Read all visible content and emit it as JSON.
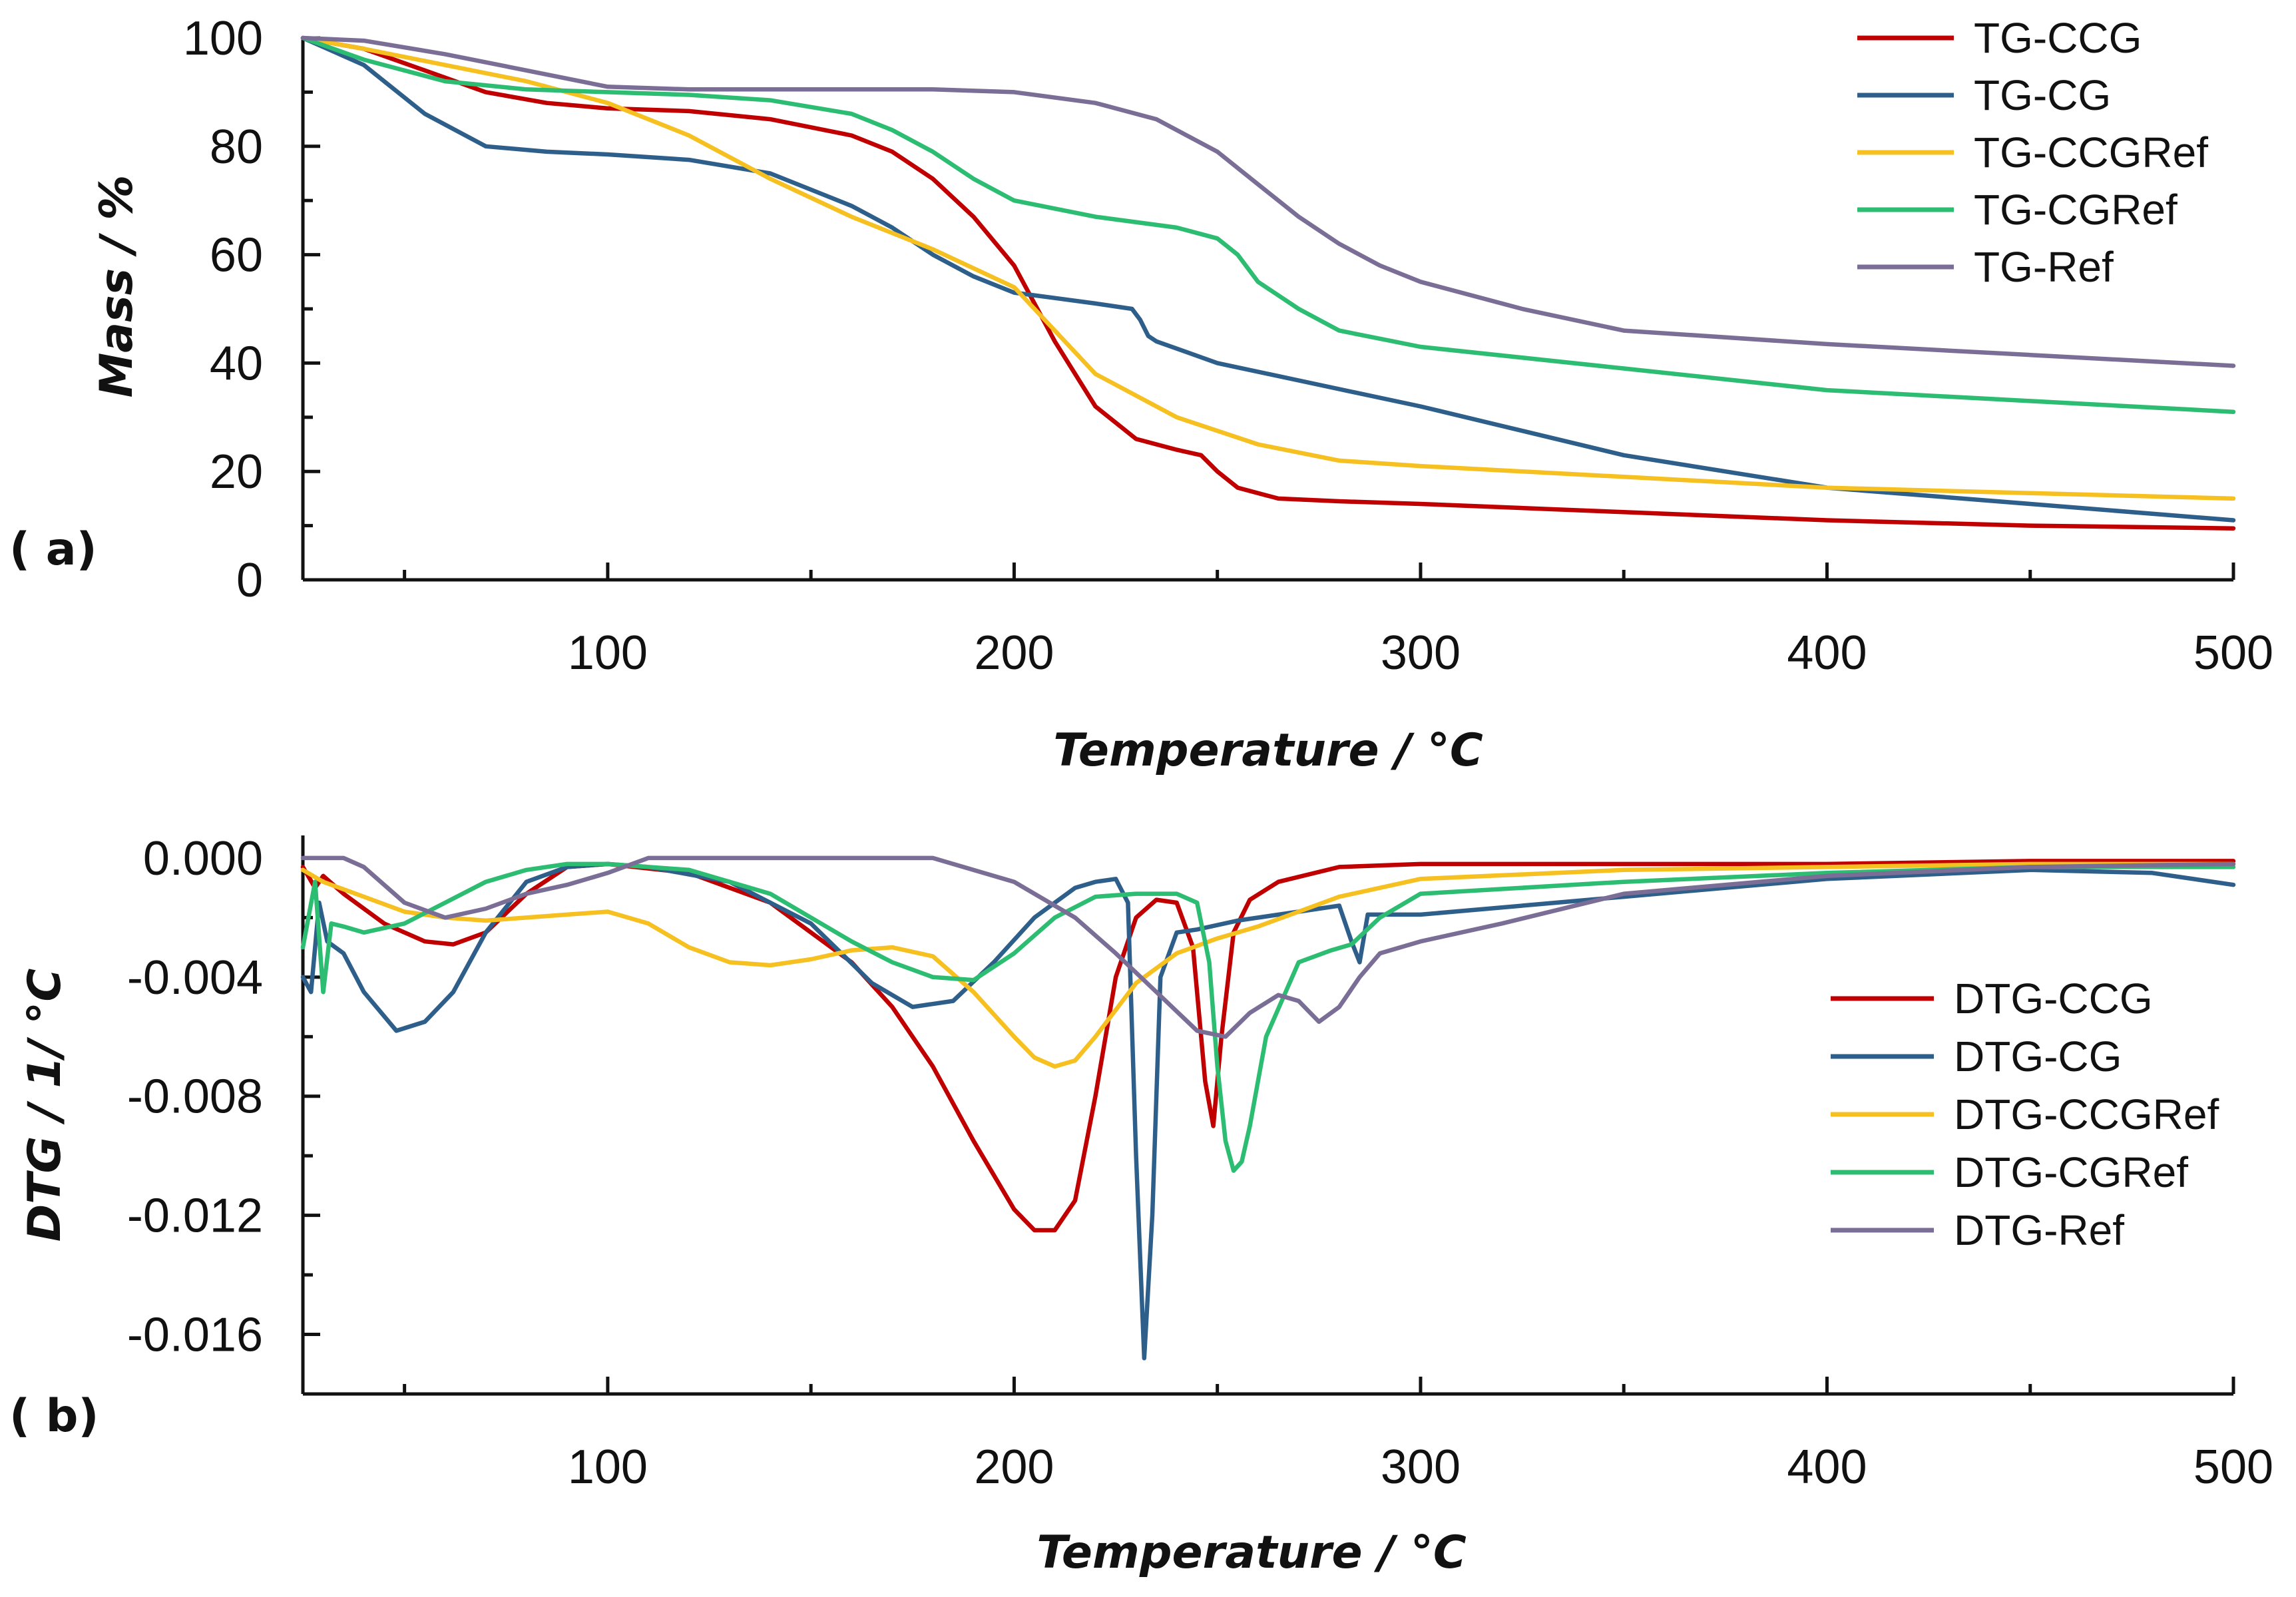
{
  "chart_data": [
    {
      "type": "line",
      "panel_label": "( a)",
      "xlabel": "Temperature / °C",
      "ylabel": "Mass / %",
      "xlim": [
        25,
        500
      ],
      "ylim": [
        0,
        100
      ],
      "x_ticks": [
        100,
        200,
        300,
        400,
        500
      ],
      "x_tick_labels": [
        "100",
        "200",
        "300",
        "400",
        "500"
      ],
      "y_ticks": [
        0,
        20,
        40,
        60,
        80,
        100
      ],
      "y_tick_labels": [
        "0",
        "20",
        "40",
        "60",
        "80",
        "100"
      ],
      "legend_position": "top-right",
      "series": [
        {
          "name": "TG-CCG",
          "color": "#c00000",
          "x": [
            25,
            40,
            55,
            70,
            85,
            100,
            120,
            140,
            160,
            170,
            180,
            190,
            200,
            210,
            220,
            230,
            240,
            246,
            250,
            255,
            265,
            280,
            300,
            350,
            400,
            450,
            500
          ],
          "y": [
            100,
            98,
            94,
            90,
            88,
            87,
            86.5,
            85,
            82,
            79,
            74,
            67,
            58,
            44,
            32,
            26,
            24,
            23,
            20,
            17,
            15,
            14.5,
            14,
            12.5,
            11,
            10,
            9.5
          ]
        },
        {
          "name": "TG-CG",
          "color": "#2e5f8a",
          "x": [
            25,
            40,
            55,
            70,
            85,
            100,
            120,
            140,
            150,
            160,
            170,
            180,
            190,
            200,
            210,
            220,
            229,
            231,
            233,
            235,
            250,
            275,
            300,
            350,
            400,
            450,
            500
          ],
          "y": [
            100,
            95,
            86,
            80,
            79,
            78.5,
            77.5,
            75,
            72,
            69,
            65,
            60,
            56,
            53,
            52,
            51,
            50,
            48,
            45,
            44,
            40,
            36,
            32,
            23,
            17,
            14,
            11
          ]
        },
        {
          "name": "TG-CCGRef",
          "color": "#f5c020",
          "x": [
            25,
            40,
            60,
            80,
            100,
            120,
            140,
            160,
            180,
            200,
            210,
            220,
            230,
            240,
            260,
            280,
            300,
            350,
            400,
            450,
            500
          ],
          "y": [
            100,
            98,
            95,
            92,
            88,
            82,
            74,
            67,
            61,
            54,
            46,
            38,
            34,
            30,
            25,
            22,
            21,
            19,
            17,
            16,
            15
          ]
        },
        {
          "name": "TG-CGRef",
          "color": "#2dbd72",
          "x": [
            25,
            40,
            60,
            80,
            100,
            120,
            140,
            160,
            170,
            180,
            190,
            200,
            220,
            240,
            250,
            255,
            260,
            270,
            280,
            300,
            350,
            400,
            450,
            500
          ],
          "y": [
            100,
            96,
            92,
            90.5,
            90,
            89.5,
            88.5,
            86,
            83,
            79,
            74,
            70,
            67,
            65,
            63,
            60,
            55,
            50,
            46,
            43,
            39,
            35,
            33,
            31
          ]
        },
        {
          "name": "TG-Ref",
          "color": "#7a6e96",
          "x": [
            25,
            40,
            60,
            80,
            100,
            120,
            150,
            180,
            200,
            220,
            235,
            250,
            260,
            270,
            280,
            290,
            300,
            325,
            350,
            400,
            450,
            500
          ],
          "y": [
            100,
            99.5,
            97,
            94,
            91,
            90.5,
            90.5,
            90.5,
            90,
            88,
            85,
            79,
            73,
            67,
            62,
            58,
            55,
            50,
            46,
            43.5,
            41.5,
            39.5
          ]
        }
      ]
    },
    {
      "type": "line",
      "panel_label": "( b)",
      "xlabel": "Temperature / °C",
      "ylabel": "DTG / 1/ °C",
      "xlim": [
        25,
        500
      ],
      "ylim": [
        -0.018,
        0.0005
      ],
      "x_ticks": [
        100,
        200,
        300,
        400,
        500
      ],
      "x_tick_labels": [
        "100",
        "200",
        "300",
        "400",
        "500"
      ],
      "y_ticks": [
        0,
        -0.004,
        -0.008,
        -0.012,
        -0.016
      ],
      "y_tick_labels": [
        "0.000",
        "-0.004",
        "-0.008",
        "-0.012",
        "-0.016"
      ],
      "legend_position": "center-right",
      "series": [
        {
          "name": "DTG-CCG",
          "color": "#c00000",
          "x": [
            25,
            28,
            30,
            35,
            45,
            55,
            62,
            70,
            80,
            90,
            100,
            120,
            140,
            160,
            170,
            180,
            190,
            200,
            205,
            210,
            215,
            220,
            225,
            230,
            235,
            240,
            244,
            247,
            249,
            251,
            254,
            258,
            265,
            280,
            300,
            350,
            400,
            450,
            500
          ],
          "y": [
            -0.0003,
            -0.001,
            -0.0006,
            -0.0012,
            -0.0022,
            -0.0028,
            -0.0029,
            -0.0025,
            -0.0012,
            -0.0003,
            -0.0002,
            -0.0005,
            -0.0015,
            -0.0035,
            -0.005,
            -0.007,
            -0.0095,
            -0.0118,
            -0.0125,
            -0.0125,
            -0.0115,
            -0.008,
            -0.004,
            -0.002,
            -0.0014,
            -0.0015,
            -0.003,
            -0.0075,
            -0.009,
            -0.006,
            -0.0025,
            -0.0014,
            -0.0008,
            -0.0003,
            -0.0002,
            -0.0002,
            -0.0002,
            -0.0001,
            -0.0001
          ]
        },
        {
          "name": "DTG-CG",
          "color": "#2e5f8a",
          "x": [
            25,
            27,
            29,
            31,
            35,
            40,
            48,
            55,
            62,
            70,
            80,
            90,
            100,
            110,
            130,
            150,
            165,
            175,
            185,
            195,
            205,
            215,
            220,
            225,
            228,
            230,
            232,
            234,
            236,
            240,
            245,
            255,
            270,
            280,
            283,
            285,
            287,
            300,
            350,
            400,
            450,
            480,
            500
          ],
          "y": [
            -0.004,
            -0.0045,
            -0.0015,
            -0.0028,
            -0.0032,
            -0.0045,
            -0.0058,
            -0.0055,
            -0.0045,
            -0.0025,
            -0.0008,
            -0.0003,
            -0.0002,
            -0.0003,
            -0.0008,
            -0.0022,
            -0.0042,
            -0.005,
            -0.0048,
            -0.0035,
            -0.002,
            -0.001,
            -0.0008,
            -0.0007,
            -0.0015,
            -0.01,
            -0.0168,
            -0.012,
            -0.004,
            -0.0025,
            -0.0024,
            -0.0021,
            -0.0018,
            -0.0016,
            -0.0028,
            -0.0035,
            -0.0019,
            -0.0019,
            -0.0013,
            -0.0007,
            -0.0004,
            -0.0005,
            -0.0009
          ]
        },
        {
          "name": "DTG-CCGRef",
          "color": "#f5c020",
          "x": [
            25,
            30,
            40,
            50,
            60,
            70,
            80,
            90,
            100,
            110,
            120,
            130,
            140,
            150,
            160,
            170,
            180,
            190,
            200,
            205,
            210,
            215,
            220,
            230,
            240,
            250,
            260,
            270,
            280,
            300,
            350,
            400,
            450,
            500
          ],
          "y": [
            -0.0004,
            -0.0008,
            -0.0013,
            -0.0018,
            -0.002,
            -0.0021,
            -0.002,
            -0.0019,
            -0.0018,
            -0.0022,
            -0.003,
            -0.0035,
            -0.0036,
            -0.0034,
            -0.0031,
            -0.003,
            -0.0033,
            -0.0045,
            -0.006,
            -0.0067,
            -0.007,
            -0.0068,
            -0.006,
            -0.0042,
            -0.0032,
            -0.0027,
            -0.0023,
            -0.0018,
            -0.0013,
            -0.0007,
            -0.0004,
            -0.0003,
            -0.0002,
            -0.0002
          ]
        },
        {
          "name": "DTG-CGRef",
          "color": "#2dbd72",
          "x": [
            25,
            28,
            30,
            32,
            35,
            40,
            50,
            60,
            70,
            80,
            90,
            100,
            120,
            140,
            160,
            170,
            180,
            190,
            200,
            210,
            220,
            230,
            240,
            245,
            248,
            250,
            252,
            254,
            256,
            258,
            262,
            270,
            278,
            283,
            290,
            300,
            350,
            400,
            450,
            500
          ],
          "y": [
            -0.003,
            -0.0008,
            -0.0045,
            -0.0022,
            -0.0023,
            -0.0025,
            -0.0022,
            -0.0015,
            -0.0008,
            -0.0004,
            -0.0002,
            -0.0002,
            -0.0004,
            -0.0012,
            -0.0028,
            -0.0035,
            -0.004,
            -0.0041,
            -0.0032,
            -0.002,
            -0.0013,
            -0.0012,
            -0.0012,
            -0.0015,
            -0.0035,
            -0.007,
            -0.0095,
            -0.0105,
            -0.0102,
            -0.009,
            -0.006,
            -0.0035,
            -0.0031,
            -0.0029,
            -0.002,
            -0.0012,
            -0.0008,
            -0.0005,
            -0.0003,
            -0.0003
          ]
        },
        {
          "name": "DTG-Ref",
          "color": "#7a6e96",
          "x": [
            25,
            35,
            40,
            50,
            60,
            70,
            80,
            90,
            100,
            110,
            120,
            150,
            180,
            200,
            215,
            225,
            235,
            245,
            252,
            258,
            265,
            270,
            275,
            280,
            285,
            290,
            300,
            320,
            350,
            400,
            450,
            500
          ],
          "y": [
            0,
            0,
            -0.0003,
            -0.0015,
            -0.002,
            -0.0017,
            -0.0012,
            -0.0009,
            -0.0005,
            0,
            0,
            0,
            0,
            -0.0008,
            -0.002,
            -0.0032,
            -0.0045,
            -0.0058,
            -0.006,
            -0.0052,
            -0.0046,
            -0.0048,
            -0.0055,
            -0.005,
            -0.004,
            -0.0032,
            -0.0028,
            -0.0022,
            -0.0012,
            -0.0006,
            -0.0003,
            -0.0002
          ]
        }
      ]
    }
  ]
}
